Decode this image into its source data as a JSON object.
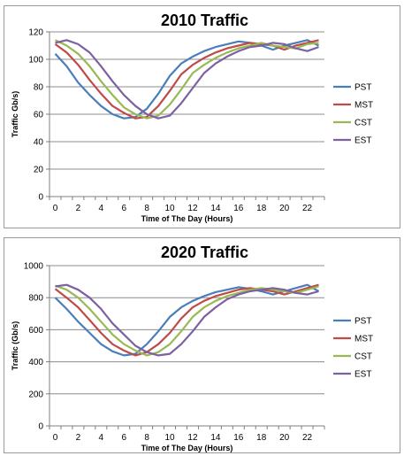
{
  "chart_data": [
    {
      "type": "line",
      "title": "2010 Traffic",
      "xlabel": "Time of The Day (Hours)",
      "ylabel": "Traffic Gb/s)",
      "xlim": [
        -0.5,
        23.5
      ],
      "ylim": [
        0,
        120
      ],
      "xticks": [
        0,
        2,
        4,
        6,
        8,
        10,
        12,
        14,
        16,
        18,
        20,
        22
      ],
      "yticks": [
        0,
        20,
        40,
        60,
        80,
        100,
        120
      ],
      "grid": true,
      "legend": "right",
      "x": [
        0,
        1,
        2,
        3,
        4,
        5,
        6,
        7,
        8,
        9,
        10,
        11,
        12,
        13,
        14,
        15,
        16,
        17,
        18,
        19,
        20,
        21,
        22,
        23
      ],
      "series": [
        {
          "name": "PST",
          "color": "#4a7ebb",
          "values": [
            104,
            95,
            83,
            74,
            66,
            60,
            57,
            58,
            64,
            75,
            88,
            97,
            102,
            106,
            109,
            111,
            113,
            112,
            110,
            107,
            110,
            112,
            114,
            110
          ]
        },
        {
          "name": "MST",
          "color": "#be4b48",
          "values": [
            111,
            105,
            96,
            85,
            75,
            66,
            61,
            57,
            58,
            66,
            77,
            89,
            96,
            101,
            105,
            108,
            110,
            112,
            111,
            110,
            107,
            110,
            112,
            114
          ]
        },
        {
          "name": "CST",
          "color": "#98b954",
          "values": [
            114,
            110,
            104,
            95,
            84,
            74,
            65,
            60,
            57,
            59,
            67,
            78,
            90,
            96,
            101,
            105,
            108,
            110,
            112,
            110,
            109,
            108,
            111,
            112
          ]
        },
        {
          "name": "EST",
          "color": "#7d60a0",
          "values": [
            112,
            114,
            111,
            105,
            95,
            84,
            74,
            66,
            60,
            57,
            59,
            68,
            79,
            90,
            97,
            102,
            106,
            109,
            110,
            112,
            111,
            108,
            106,
            109
          ]
        }
      ]
    },
    {
      "type": "line",
      "title": "2020 Traffic",
      "xlabel": "Time of The Day (Hours)",
      "ylabel": "Traffic (Gb/s)",
      "xlim": [
        -0.5,
        23.5
      ],
      "ylim": [
        0,
        1000
      ],
      "xticks": [
        0,
        2,
        4,
        6,
        8,
        10,
        12,
        14,
        16,
        18,
        20,
        22
      ],
      "yticks": [
        0,
        200,
        400,
        600,
        800,
        1000
      ],
      "grid": true,
      "legend": "right",
      "x": [
        0,
        1,
        2,
        3,
        4,
        5,
        6,
        7,
        8,
        9,
        10,
        11,
        12,
        13,
        14,
        15,
        16,
        17,
        18,
        19,
        20,
        21,
        22,
        23
      ],
      "series": [
        {
          "name": "PST",
          "color": "#4a7ebb",
          "values": [
            800,
            730,
            650,
            580,
            510,
            465,
            440,
            450,
            510,
            590,
            680,
            740,
            780,
            810,
            835,
            850,
            865,
            855,
            840,
            820,
            840,
            860,
            880,
            840
          ]
        },
        {
          "name": "MST",
          "color": "#be4b48",
          "values": [
            855,
            800,
            740,
            660,
            580,
            510,
            470,
            440,
            460,
            510,
            580,
            670,
            740,
            780,
            810,
            830,
            850,
            860,
            850,
            840,
            820,
            840,
            860,
            880
          ]
        },
        {
          "name": "CST",
          "color": "#98b954",
          "values": [
            875,
            850,
            800,
            730,
            650,
            570,
            510,
            470,
            440,
            460,
            510,
            590,
            680,
            740,
            780,
            810,
            830,
            850,
            860,
            850,
            840,
            830,
            850,
            870
          ]
        },
        {
          "name": "EST",
          "color": "#7d60a0",
          "values": [
            870,
            880,
            850,
            800,
            730,
            640,
            570,
            500,
            460,
            440,
            450,
            510,
            590,
            680,
            740,
            790,
            820,
            840,
            850,
            860,
            850,
            830,
            820,
            840
          ]
        }
      ]
    }
  ]
}
